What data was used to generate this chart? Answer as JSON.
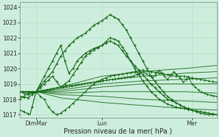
{
  "title": "",
  "xlabel": "Pression niveau de la mer( hPa )",
  "bg_color": "#cdeedd",
  "grid_color": "#b0d8c0",
  "line_color": "#1a6b1a",
  "ylim": [
    1016.8,
    1024.3
  ],
  "xlim": [
    0,
    96
  ],
  "xtick_positions": [
    8,
    40,
    84
  ],
  "xtick_labels": [
    "DimMar",
    "Lun",
    "Mer"
  ],
  "ytick_positions": [
    1017,
    1018,
    1019,
    1020,
    1021,
    1022,
    1023,
    1024
  ],
  "ytick_labels": [
    "1017",
    "1018",
    "1019",
    "1020",
    "1021",
    "1022",
    "1023",
    "1024"
  ]
}
